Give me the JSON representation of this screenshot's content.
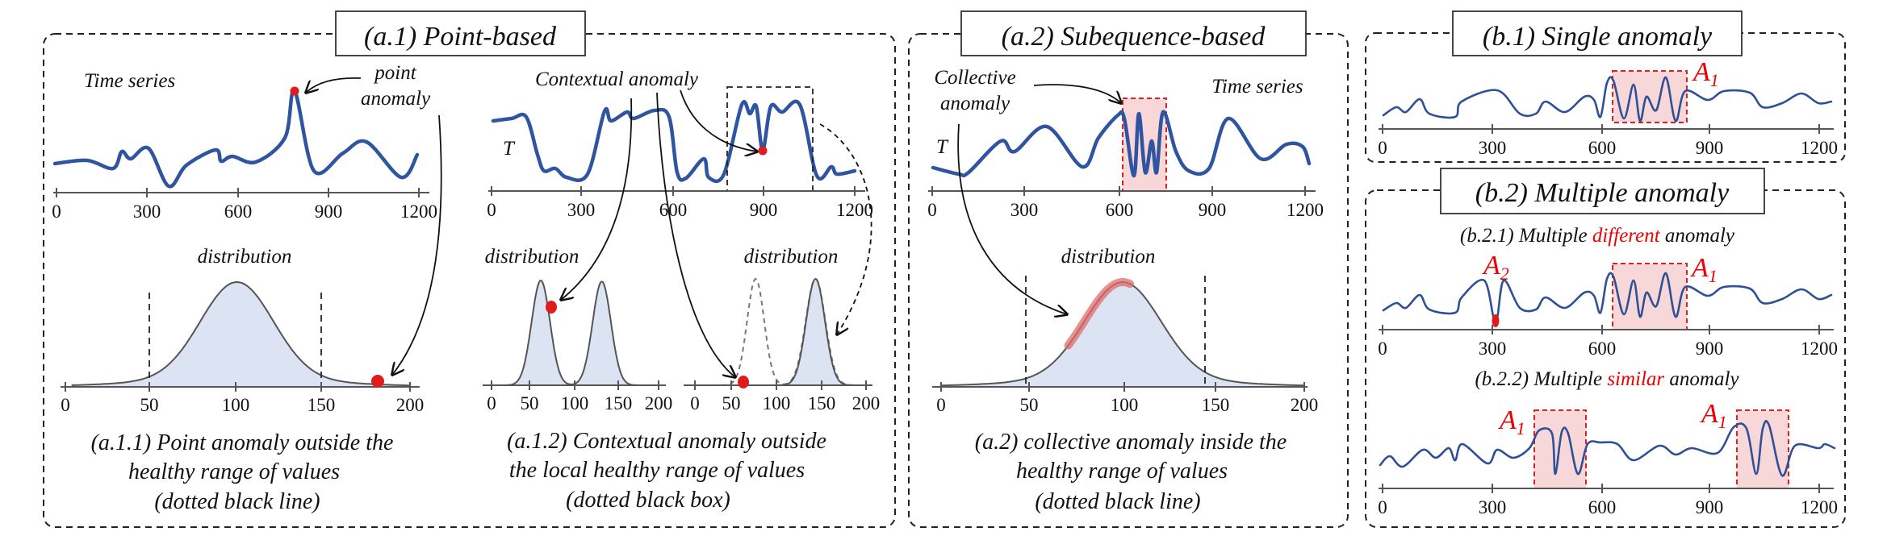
{
  "time_ticks": [
    "0",
    "300",
    "600",
    "900",
    "1200"
  ],
  "dist_ticks": [
    "0",
    "50",
    "100",
    "150",
    "200"
  ],
  "colors": {
    "series": "#2f55a0",
    "anomaly_point": "#e01b1b",
    "anomaly_box_fill": "#f8d7d9",
    "anomaly_box_border": "#e02020",
    "distribution_fill": "#dce4f4",
    "highlight_text": "#ee0000"
  },
  "a1": {
    "title": "(a.1) Point-based",
    "ts_label": "Time series",
    "point_anomaly": [
      "point",
      "anomaly"
    ],
    "dist_label": "distribution",
    "caption_left": [
      "(a.1.1) Point anomaly outside  the",
      "healthy  range of values",
      "(dotted black line)"
    ],
    "contextual_label": "Contextual anomaly",
    "t_label": "T",
    "dist_label_left": "distribution",
    "dist_label_right": "distribution",
    "caption_right": [
      "(a.1.2) Contextual anomaly outside",
      "the local  healthy range of values",
      "(dotted black box)"
    ]
  },
  "a2": {
    "title": "(a.2) Subequence-based",
    "collective": [
      "Collective",
      "anomaly"
    ],
    "ts_label": "Time series",
    "t_label": "T",
    "dist_label": "distribution",
    "caption": [
      "(a.2) collective anomaly inside the",
      "healthy range of values",
      "(dotted black line)"
    ]
  },
  "b1": {
    "title": "(b.1) Single anomaly",
    "a1": {
      "letter": "A",
      "sub": "1"
    }
  },
  "b2": {
    "title": "(b.2) Multiple anomaly",
    "b21_label": {
      "prefix": "(b.2.1) Multiple ",
      "highlight": "different",
      "suffix": " anomaly"
    },
    "b22_label": {
      "prefix": "(b.2.2) Multiple ",
      "highlight": "similar",
      "suffix": " anomaly"
    },
    "a1": {
      "letter": "A",
      "sub": "1"
    },
    "a2": {
      "letter": "A",
      "sub": "2"
    }
  }
}
